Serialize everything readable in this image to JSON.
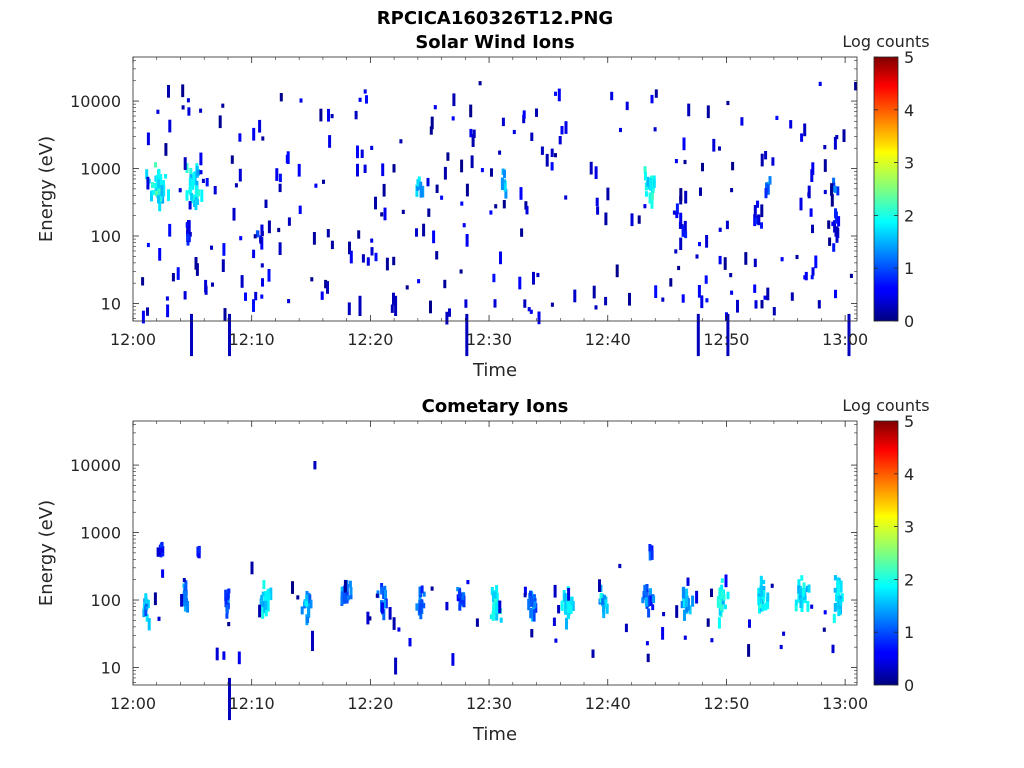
{
  "figure": {
    "title": "RPCICA160326T12.PNG"
  },
  "chart_data": [
    {
      "type": "heatmap",
      "title": "Solar Wind Ions",
      "xlabel": "Time",
      "ylabel": "Energy (eV)",
      "x_ticks": [
        "12:00",
        "12:10",
        "12:20",
        "12:30",
        "12:40",
        "12:50",
        "13:00"
      ],
      "x_range_minutes": [
        0,
        61
      ],
      "y_scale": "log",
      "y_ticks": [
        "10",
        "100",
        "1000",
        "10000"
      ],
      "y_range": [
        5.5,
        45000
      ],
      "colorbar": {
        "label": "Log counts",
        "range": [
          0,
          5
        ],
        "ticks": [
          "0",
          "1",
          "2",
          "3",
          "4",
          "5"
        ]
      },
      "clusters": [
        {
          "t": 2.0,
          "e": 600,
          "dt": 1.2,
          "de": 0.55,
          "v": 1.9,
          "n": 40
        },
        {
          "t": 5.1,
          "e": 600,
          "dt": 1.0,
          "de": 0.55,
          "v": 1.8,
          "n": 30
        },
        {
          "t": 24.0,
          "e": 600,
          "dt": 0.6,
          "de": 0.3,
          "v": 1.4,
          "n": 8
        },
        {
          "t": 31.2,
          "e": 600,
          "dt": 0.5,
          "de": 0.3,
          "v": 1.5,
          "n": 8
        },
        {
          "t": 43.5,
          "e": 600,
          "dt": 0.9,
          "de": 0.4,
          "v": 1.9,
          "n": 20
        },
        {
          "t": 53.4,
          "e": 600,
          "dt": 0.5,
          "de": 0.3,
          "v": 1.2,
          "n": 6
        },
        {
          "t": 59.0,
          "e": 600,
          "dt": 0.5,
          "de": 0.3,
          "v": 1.1,
          "n": 6
        },
        {
          "t": 4.5,
          "e": 130,
          "dt": 0.5,
          "de": 0.4,
          "v": 0.6,
          "n": 10
        },
        {
          "t": 10.5,
          "e": 120,
          "dt": 0.4,
          "de": 0.35,
          "v": 0.5,
          "n": 8
        },
        {
          "t": 46.0,
          "e": 150,
          "dt": 0.8,
          "de": 0.4,
          "v": 0.5,
          "n": 10
        },
        {
          "t": 52.5,
          "e": 200,
          "dt": 0.6,
          "de": 0.3,
          "v": 0.6,
          "n": 8
        },
        {
          "t": 59.2,
          "e": 150,
          "dt": 0.5,
          "de": 0.4,
          "v": 0.6,
          "n": 10
        }
      ],
      "scatter_seed": 17,
      "scatter_count": 300,
      "scatter_range_minutes": [
        0.5,
        60.8
      ],
      "scatter_log_e_range": [
        0.85,
        4.3
      ],
      "scatter_level_range": [
        0.05,
        0.7
      ],
      "streaks": [
        {
          "t": 4.8,
          "e": 7,
          "len": 0.25
        },
        {
          "t": 8.0,
          "e": 7,
          "len": 0.25
        },
        {
          "t": 19.0,
          "e": 13,
          "len": 0.12
        },
        {
          "t": 22.0,
          "e": 13,
          "len": 0.12
        },
        {
          "t": 28.0,
          "e": 7,
          "len": 0.25
        },
        {
          "t": 47.5,
          "e": 7,
          "len": 0.25
        },
        {
          "t": 50.0,
          "e": 7,
          "len": 0.25
        },
        {
          "t": 60.2,
          "e": 7,
          "len": 0.25
        }
      ]
    },
    {
      "type": "heatmap",
      "title": "Cometary Ions",
      "xlabel": "Time",
      "ylabel": "Energy (eV)",
      "x_ticks": [
        "12:00",
        "12:10",
        "12:20",
        "12:30",
        "12:40",
        "12:50",
        "13:00"
      ],
      "x_range_minutes": [
        0,
        61
      ],
      "y_scale": "log",
      "y_ticks": [
        "10",
        "100",
        "1000",
        "10000"
      ],
      "y_range": [
        5.5,
        45000
      ],
      "colorbar": {
        "label": "Log counts",
        "range": [
          0,
          5
        ],
        "ticks": [
          "0",
          "1",
          "2",
          "3",
          "4",
          "5"
        ]
      },
      "clusters": [
        {
          "t": 1.0,
          "e": 100,
          "dt": 0.4,
          "de": 0.35,
          "v": 1.5,
          "n": 14
        },
        {
          "t": 4.3,
          "e": 120,
          "dt": 0.4,
          "de": 0.35,
          "v": 1.3,
          "n": 14
        },
        {
          "t": 7.8,
          "e": 110,
          "dt": 0.5,
          "de": 0.35,
          "v": 1.0,
          "n": 14
        },
        {
          "t": 11.0,
          "e": 110,
          "dt": 0.7,
          "de": 0.4,
          "v": 1.7,
          "n": 22
        },
        {
          "t": 14.5,
          "e": 110,
          "dt": 0.6,
          "de": 0.4,
          "v": 1.4,
          "n": 18
        },
        {
          "t": 17.8,
          "e": 140,
          "dt": 0.7,
          "de": 0.4,
          "v": 1.2,
          "n": 22
        },
        {
          "t": 21.0,
          "e": 120,
          "dt": 0.6,
          "de": 0.35,
          "v": 1.1,
          "n": 16
        },
        {
          "t": 24.0,
          "e": 110,
          "dt": 0.6,
          "de": 0.35,
          "v": 1.2,
          "n": 16
        },
        {
          "t": 27.5,
          "e": 110,
          "dt": 0.5,
          "de": 0.35,
          "v": 1.1,
          "n": 14
        },
        {
          "t": 30.5,
          "e": 100,
          "dt": 0.7,
          "de": 0.4,
          "v": 1.8,
          "n": 22
        },
        {
          "t": 33.5,
          "e": 100,
          "dt": 0.7,
          "de": 0.4,
          "v": 1.2,
          "n": 20
        },
        {
          "t": 36.5,
          "e": 100,
          "dt": 0.7,
          "de": 0.4,
          "v": 1.7,
          "n": 22
        },
        {
          "t": 39.5,
          "e": 110,
          "dt": 0.6,
          "de": 0.35,
          "v": 1.5,
          "n": 18
        },
        {
          "t": 43.3,
          "e": 130,
          "dt": 0.8,
          "de": 0.4,
          "v": 1.0,
          "n": 20
        },
        {
          "t": 46.5,
          "e": 110,
          "dt": 0.7,
          "de": 0.4,
          "v": 1.5,
          "n": 22
        },
        {
          "t": 49.5,
          "e": 120,
          "dt": 0.8,
          "de": 0.4,
          "v": 1.9,
          "n": 26
        },
        {
          "t": 52.8,
          "e": 130,
          "dt": 0.8,
          "de": 0.4,
          "v": 1.8,
          "n": 26
        },
        {
          "t": 56.2,
          "e": 130,
          "dt": 0.8,
          "de": 0.4,
          "v": 1.8,
          "n": 26
        },
        {
          "t": 59.3,
          "e": 120,
          "dt": 0.7,
          "de": 0.4,
          "v": 1.7,
          "n": 24
        },
        {
          "t": 2.2,
          "e": 650,
          "dt": 0.5,
          "de": 0.1,
          "v": 0.7,
          "n": 8
        },
        {
          "t": 5.4,
          "e": 620,
          "dt": 0.3,
          "de": 0.1,
          "v": 0.6,
          "n": 4
        },
        {
          "t": 43.5,
          "e": 620,
          "dt": 0.4,
          "de": 0.1,
          "v": 0.8,
          "n": 5
        }
      ],
      "scatter_seed": 91,
      "scatter_count": 60,
      "scatter_range_minutes": [
        0.5,
        60.8
      ],
      "scatter_log_e_range": [
        1.2,
        2.6
      ],
      "scatter_level_range": [
        0.05,
        0.6
      ],
      "streaks": [
        {
          "t": 8.0,
          "e": 7,
          "len": 0.25
        },
        {
          "t": 15.2,
          "e": 11500,
          "len": 0.05
        },
        {
          "t": 22.0,
          "e": 14,
          "len": 0.1
        },
        {
          "t": 15.0,
          "e": 35,
          "len": 0.12
        }
      ]
    }
  ]
}
